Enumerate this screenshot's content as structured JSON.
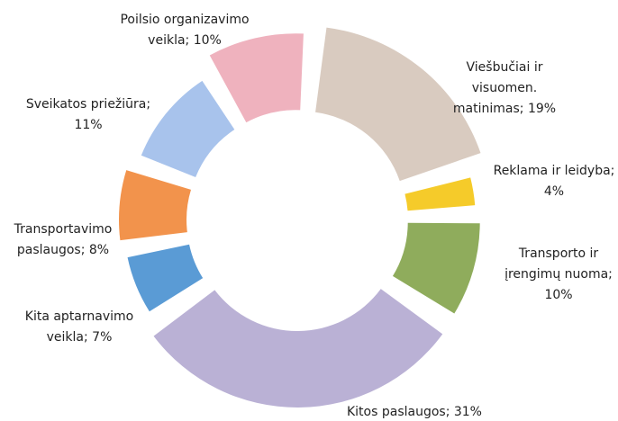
{
  "chart_data": {
    "type": "donut",
    "values": [
      19,
      4,
      10,
      31,
      7,
      8,
      11,
      10
    ],
    "value_labels": [
      "Viešbučiai ir visuomen. matinimas; 19%",
      "Reklama ir leidyba; 4%",
      "Transporto ir įrengimų nuoma; 10%",
      "Kitos paslaugos; 31%",
      "Kita aptarnavimo veikla; 7%",
      "Transportavimo paslaugos; 8%",
      "Sveikatos priežiūra; 11%",
      "Poilsio organizavimo veikla; 10%"
    ],
    "colors": [
      "#d9cbc0",
      "#f5cb2a",
      "#8fac5c",
      "#bab1d5",
      "#5a9bd5",
      "#f2934c",
      "#a8c3ec",
      "#efb2be"
    ]
  }
}
